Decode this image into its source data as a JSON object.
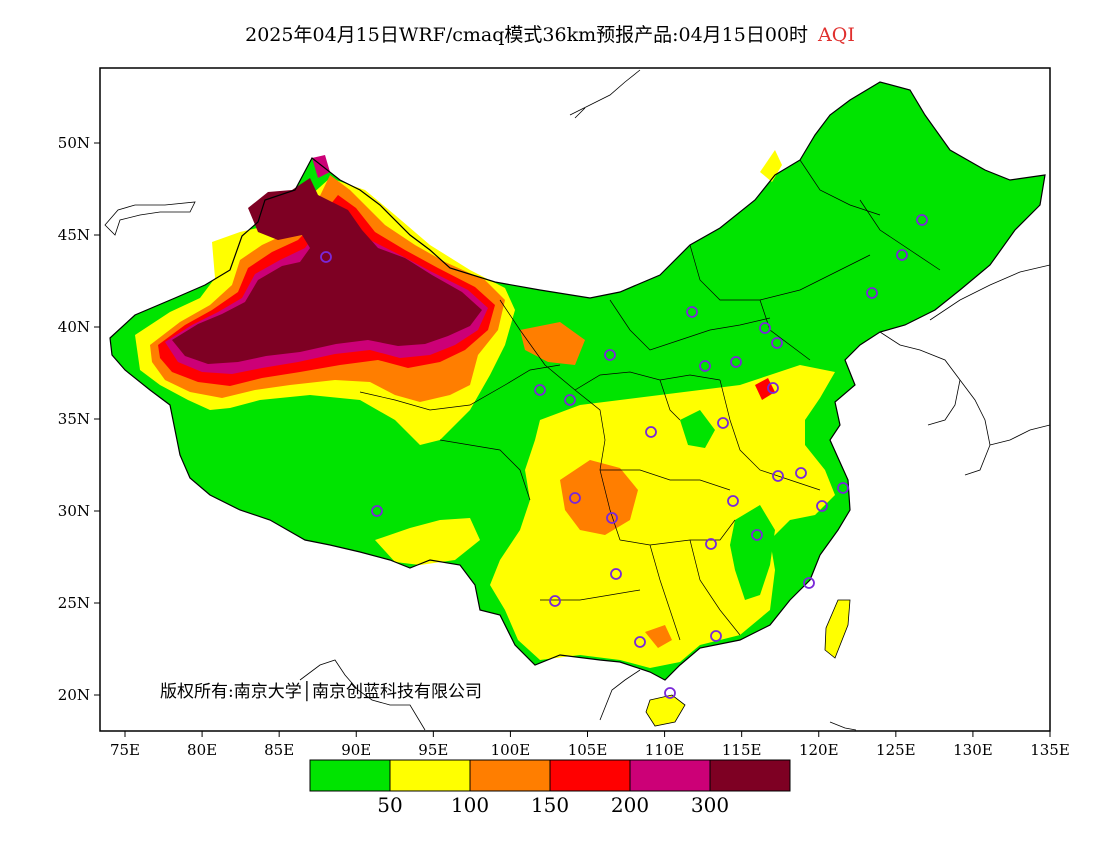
{
  "title": {
    "main": "2025年04月15日WRF/cmaq模式36km预报产品:04月15日00时",
    "variable": "AQI",
    "variable_color": "#e0302e"
  },
  "map": {
    "lon_ticks": [
      "75E",
      "80E",
      "85E",
      "90E",
      "95E",
      "100E",
      "105E",
      "110E",
      "115E",
      "120E",
      "125E",
      "130E",
      "135E"
    ],
    "lat_ticks": [
      "50N",
      "45N",
      "40N",
      "35N",
      "30N",
      "25N",
      "20N"
    ],
    "copyright": "版权所有:南京大学│南京创蓝科技有限公司"
  },
  "colorbar": {
    "colors": [
      "#00e400",
      "#ffff00",
      "#ff7e00",
      "#ff0000",
      "#cc0077",
      "#7e0023"
    ],
    "labels": [
      "50",
      "100",
      "150",
      "200",
      "300"
    ]
  }
}
